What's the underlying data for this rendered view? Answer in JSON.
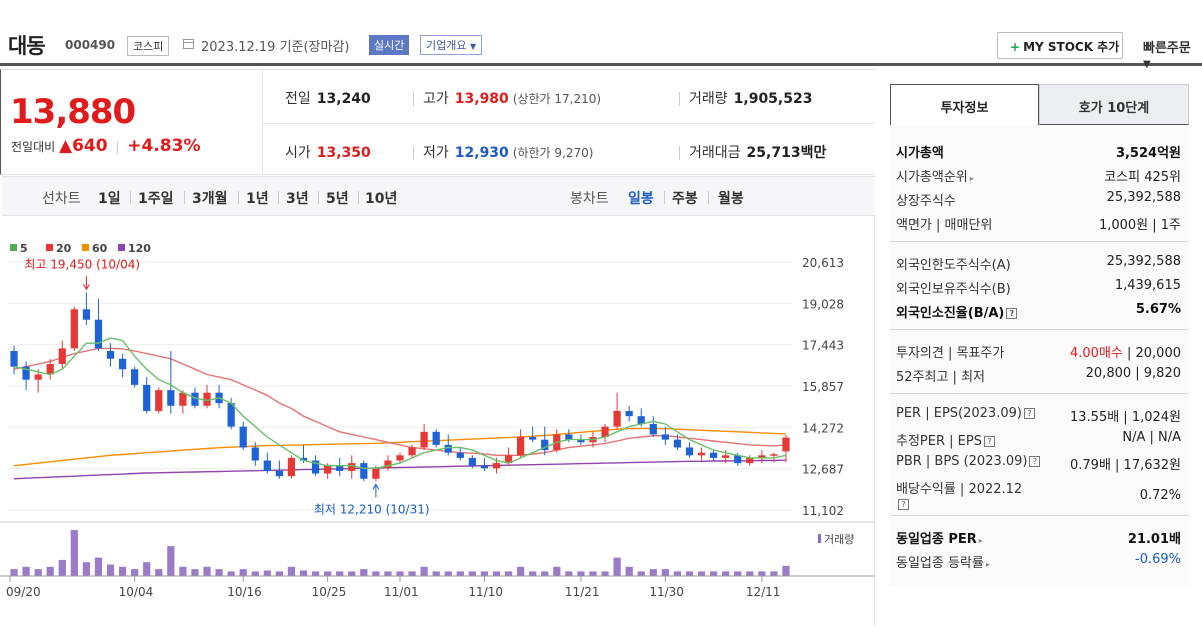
{
  "header": {
    "name": "대동",
    "code": "000490",
    "market": "코스피",
    "date_text": "2023.12.19 기준(장마감)",
    "realtime": "실시간",
    "company_info": "기업개요",
    "mystock_label": "MY STOCK 추가",
    "quick_order": "빠른주문"
  },
  "price": {
    "current": "13,880",
    "change_label": "전일대비",
    "change_amount": "640",
    "change_rate": "+4.83%"
  },
  "quote": {
    "prev_label": "전일",
    "prev": "13,240",
    "high_label": "고가",
    "high": "13,980",
    "upper_limit": "(상한가 17,210)",
    "volume_label": "거래량",
    "volume": "1,905,523",
    "open_label": "시가",
    "open": "13,350",
    "low_label": "저가",
    "low": "12,930",
    "lower_limit": "(하한가 9,270)",
    "amount_label": "거래대금",
    "amount": "25,713",
    "amount_unit": "백만"
  },
  "period": {
    "line_label": "선차트",
    "line_options": [
      "1일",
      "1주일",
      "3개월",
      "1년",
      "3년",
      "5년",
      "10년"
    ],
    "candle_label": "봉차트",
    "candle_options": [
      "일봉",
      "주봉",
      "월봉"
    ],
    "candle_selected": "일봉"
  },
  "chart_data": {
    "type": "candlestick",
    "legend": [
      {
        "name": "5",
        "color": "#4caf50"
      },
      {
        "name": "20",
        "color": "#e53935"
      },
      {
        "name": "60",
        "color": "#fb8c00"
      },
      {
        "name": "120",
        "color": "#8e44ad"
      }
    ],
    "y_ticks": [
      "20,613",
      "19,028",
      "17,443",
      "15,857",
      "14,272",
      "12,687",
      "11,102"
    ],
    "ylim": [
      11102,
      20613
    ],
    "x_ticks": [
      "09/20",
      "10/04",
      "10/16",
      "10/25",
      "11/01",
      "11/10",
      "11/21",
      "11/30",
      "12/11"
    ],
    "max_annotation": "최고 19,450 (10/04)",
    "min_annotation": "최저 12,210 (10/31)",
    "volume_label": "거래량",
    "up_color": "#e53935",
    "down_color": "#1e63d6",
    "candles": [
      [
        17200,
        17400,
        16300,
        16600
      ],
      [
        16600,
        16800,
        15700,
        16100
      ],
      [
        16100,
        16500,
        15600,
        16300
      ],
      [
        16300,
        16900,
        16100,
        16700
      ],
      [
        16700,
        17600,
        16500,
        17300
      ],
      [
        17300,
        18900,
        17200,
        18800
      ],
      [
        18800,
        19450,
        18200,
        18400
      ],
      [
        18400,
        19200,
        17200,
        17300
      ],
      [
        17200,
        17500,
        16600,
        16900
      ],
      [
        16900,
        17100,
        16200,
        16500
      ],
      [
        16500,
        16600,
        15800,
        15900
      ],
      [
        15900,
        16200,
        14800,
        14900
      ],
      [
        14900,
        15800,
        14800,
        15700
      ],
      [
        15700,
        17200,
        14800,
        15100
      ],
      [
        15100,
        15700,
        14800,
        15600
      ],
      [
        15600,
        15800,
        15000,
        15100
      ],
      [
        15100,
        15900,
        15000,
        15600
      ],
      [
        15600,
        15900,
        15000,
        15200
      ],
      [
        15200,
        15400,
        14200,
        14300
      ],
      [
        14300,
        14500,
        13400,
        13500
      ],
      [
        13500,
        13700,
        12800,
        13000
      ],
      [
        13000,
        13300,
        12500,
        12600
      ],
      [
        12600,
        13000,
        12300,
        12400
      ],
      [
        12400,
        13200,
        12300,
        13100
      ],
      [
        13100,
        13600,
        12900,
        13000
      ],
      [
        13000,
        13200,
        12400,
        12500
      ],
      [
        12500,
        12900,
        12300,
        12800
      ],
      [
        12800,
        13100,
        12400,
        12600
      ],
      [
        12600,
        13200,
        12300,
        12900
      ],
      [
        12900,
        13000,
        12210,
        12300
      ],
      [
        12300,
        12800,
        12200,
        12700
      ],
      [
        12700,
        13200,
        12600,
        13000
      ],
      [
        13000,
        13300,
        12900,
        13200
      ],
      [
        13200,
        13600,
        13100,
        13500
      ],
      [
        13500,
        14400,
        13400,
        14100
      ],
      [
        14100,
        14200,
        13500,
        13600
      ],
      [
        13600,
        14000,
        13200,
        13300
      ],
      [
        13300,
        13500,
        13000,
        13100
      ],
      [
        13100,
        13200,
        12700,
        12800
      ],
      [
        12800,
        13100,
        12600,
        12700
      ],
      [
        12700,
        13100,
        12500,
        12900
      ],
      [
        12900,
        13500,
        12800,
        13200
      ],
      [
        13200,
        14200,
        13100,
        13900
      ],
      [
        13900,
        14300,
        13700,
        13800
      ],
      [
        13800,
        14300,
        13200,
        13400
      ],
      [
        13400,
        14200,
        13300,
        14000
      ],
      [
        14000,
        14200,
        13700,
        13800
      ],
      [
        13800,
        14000,
        13600,
        13700
      ],
      [
        13700,
        14100,
        13500,
        13900
      ],
      [
        13900,
        14400,
        13700,
        14300
      ],
      [
        14300,
        15600,
        14200,
        14900
      ],
      [
        14900,
        15100,
        14500,
        14700
      ],
      [
        14700,
        15000,
        14300,
        14400
      ],
      [
        14400,
        14700,
        13900,
        14000
      ],
      [
        14000,
        14300,
        13600,
        13800
      ],
      [
        13800,
        14000,
        13400,
        13500
      ],
      [
        13500,
        13700,
        13100,
        13200
      ],
      [
        13200,
        13500,
        13000,
        13300
      ],
      [
        13300,
        13400,
        13000,
        13100
      ],
      [
        13100,
        13400,
        12900,
        13200
      ],
      [
        13200,
        13300,
        12800,
        12900
      ],
      [
        12900,
        13200,
        12800,
        13100
      ],
      [
        13100,
        13400,
        12900,
        13200
      ],
      [
        13200,
        13300,
        12930,
        13240
      ],
      [
        13350,
        13980,
        12930,
        13880
      ]
    ],
    "volumes": [
      0.15,
      0.2,
      0.15,
      0.2,
      0.35,
      1.0,
      0.3,
      0.4,
      0.25,
      0.2,
      0.15,
      0.3,
      0.15,
      0.65,
      0.2,
      0.15,
      0.2,
      0.15,
      0.1,
      0.15,
      0.1,
      0.12,
      0.1,
      0.2,
      0.12,
      0.1,
      0.1,
      0.1,
      0.1,
      0.15,
      0.1,
      0.1,
      0.1,
      0.1,
      0.2,
      0.1,
      0.1,
      0.1,
      0.1,
      0.1,
      0.1,
      0.1,
      0.2,
      0.1,
      0.1,
      0.2,
      0.1,
      0.1,
      0.1,
      0.1,
      0.4,
      0.2,
      0.1,
      0.15,
      0.15,
      0.1,
      0.1,
      0.1,
      0.1,
      0.1,
      0.1,
      0.1,
      0.1,
      0.1,
      0.22
    ],
    "ma5": [
      16600,
      16500,
      16400,
      16300,
      16500,
      17000,
      17500,
      17500,
      17700,
      17600,
      17000,
      16500,
      16100,
      15900,
      15600,
      15400,
      15300,
      15400,
      15200,
      14700,
      14300,
      13900,
      13600,
      13300,
      13000,
      12900,
      12800,
      12800,
      12800,
      12700,
      12700,
      12800,
      12900,
      13100,
      13300,
      13400,
      13500,
      13500,
      13400,
      13200,
      13000,
      12900,
      13100,
      13300,
      13500,
      13700,
      13800,
      13800,
      13800,
      13900,
      14100,
      14300,
      14400,
      14500,
      14400,
      14100,
      13800,
      13600,
      13400,
      13300,
      13200,
      13100,
      13100,
      13100,
      13200
    ],
    "ma20": [
      16500,
      16600,
      16700,
      16800,
      16950,
      17100,
      17200,
      17300,
      17300,
      17280,
      17200,
      17100,
      17000,
      16900,
      16700,
      16500,
      16300,
      16200,
      16100,
      15900,
      15700,
      15500,
      15200,
      15000,
      14700,
      14500,
      14300,
      14100,
      14000,
      13900,
      13800,
      13700,
      13600,
      13500,
      13450,
      13400,
      13350,
      13300,
      13280,
      13250,
      13200,
      13200,
      13200,
      13250,
      13300,
      13400,
      13500,
      13550,
      13600,
      13650,
      13750,
      13850,
      13900,
      13950,
      13950,
      13900,
      13850,
      13800,
      13750,
      13700,
      13650,
      13600,
      13580,
      13560,
      13600
    ],
    "ma60": [
      12800,
      12850,
      12900,
      12950,
      13000,
      13050,
      13100,
      13150,
      13200,
      13230,
      13260,
      13300,
      13330,
      13360,
      13400,
      13430,
      13460,
      13490,
      13510,
      13530,
      13550,
      13570,
      13580,
      13590,
      13600,
      13610,
      13620,
      13630,
      13640,
      13650,
      13660,
      13680,
      13700,
      13720,
      13740,
      13760,
      13780,
      13800,
      13820,
      13840,
      13860,
      13880,
      13900,
      13930,
      13960,
      14000,
      14040,
      14080,
      14120,
      14160,
      14200,
      14220,
      14230,
      14230,
      14220,
      14200,
      14180,
      14160,
      14140,
      14120,
      14100,
      14080,
      14060,
      14040,
      14020
    ],
    "ma120": [
      12300,
      12320,
      12340,
      12360,
      12380,
      12400,
      12420,
      12440,
      12460,
      12480,
      12500,
      12520,
      12530,
      12540,
      12550,
      12560,
      12570,
      12580,
      12590,
      12600,
      12610,
      12620,
      12630,
      12640,
      12650,
      12660,
      12670,
      12680,
      12690,
      12700,
      12710,
      12720,
      12730,
      12740,
      12750,
      12760,
      12770,
      12780,
      12790,
      12800,
      12810,
      12820,
      12830,
      12840,
      12850,
      12860,
      12870,
      12880,
      12890,
      12900,
      12910,
      12920,
      12930,
      12940,
      12950,
      12960,
      12970,
      12970,
      12980,
      12980,
      12990,
      12990,
      13000,
      13000,
      13010
    ]
  },
  "side": {
    "tab_active": "투자정보",
    "tab_inactive": "호가 10단계",
    "rows": [
      {
        "k": "시가총액",
        "v": "3,524억원",
        "bold": true
      },
      {
        "k": "시가총액순위",
        "v": "코스피 425위",
        "arrow": true
      },
      {
        "k": "상장주식수",
        "v": "25,392,588"
      },
      {
        "k": "액면가 | 매매단위",
        "v": "1,000원 | 1주"
      },
      {
        "k": "외국인한도주식수(A)",
        "v": "25,392,588"
      },
      {
        "k": "외국인보유주식수(B)",
        "v": "1,439,615"
      },
      {
        "k": "외국인소진율(B/A)",
        "v": "5.67%",
        "bold": true,
        "q": true
      },
      {
        "k": "투자의견 | 목표주가",
        "v_red": "4.00매수",
        "v": "| 20,000"
      },
      {
        "k": "52주최고 | 최저",
        "v": "20,800 | 9,820"
      },
      {
        "k": "PER | EPS(2023.09)",
        "v": "13.55배 | 1,024원",
        "q": true
      },
      {
        "k": "추정PER | EPS",
        "v": "N/A | N/A",
        "q": true
      },
      {
        "k": "PBR | BPS (2023.09)",
        "v": "0.79배 | 17,632원",
        "q": true
      },
      {
        "k": "배당수익률 | 2022.12",
        "v": "0.72%",
        "q_below": true
      },
      {
        "k": "동일업종 PER",
        "v": "21.01배",
        "bold": true,
        "arrow": true
      },
      {
        "k": "동일업종 등락률",
        "v": "-0.69%",
        "blue": true,
        "arrow": true
      }
    ]
  }
}
